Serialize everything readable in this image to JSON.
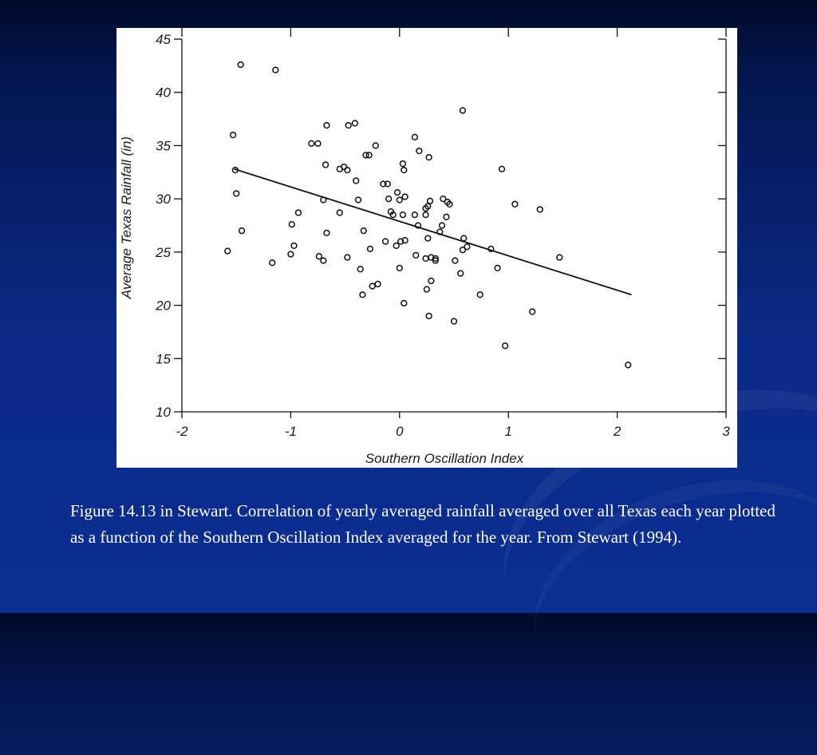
{
  "caption": "Figure 14.13 in Stewart.  Correlation of yearly averaged rainfall averaged over all Texas each year plotted as a function of the Southern Oscillation Index averaged for the year. From Stewart (1994).",
  "chart_data": {
    "type": "scatter",
    "xlabel": "Southern Oscillation Index",
    "ylabel": "Average Texas Rainfall (in)",
    "xlim": [
      -2,
      3
    ],
    "ylim": [
      10,
      45
    ],
    "xticks": [
      "-2",
      "-1",
      "0",
      "1",
      "2",
      "3"
    ],
    "yticks": [
      "10",
      "15",
      "20",
      "25",
      "30",
      "35",
      "40",
      "45"
    ],
    "grid": false,
    "points": [
      [
        -1.46,
        42.6
      ],
      [
        -1.14,
        42.1
      ],
      [
        -1.53,
        36.0
      ],
      [
        -1.51,
        32.7
      ],
      [
        -1.5,
        30.5
      ],
      [
        -1.45,
        27.0
      ],
      [
        -1.58,
        25.1
      ],
      [
        -1.17,
        24.0
      ],
      [
        -0.99,
        27.6
      ],
      [
        -0.93,
        28.7
      ],
      [
        -0.97,
        25.6
      ],
      [
        -1.0,
        24.8
      ],
      [
        -0.81,
        35.2
      ],
      [
        -0.75,
        35.2
      ],
      [
        -0.67,
        36.9
      ],
      [
        -0.68,
        33.2
      ],
      [
        -0.7,
        29.9
      ],
      [
        -0.67,
        26.8
      ],
      [
        -0.74,
        24.6
      ],
      [
        -0.7,
        24.2
      ],
      [
        -0.55,
        32.8
      ],
      [
        -0.51,
        33.0
      ],
      [
        -0.48,
        32.7
      ],
      [
        -0.47,
        36.9
      ],
      [
        -0.41,
        37.1
      ],
      [
        -0.4,
        31.7
      ],
      [
        -0.38,
        29.9
      ],
      [
        -0.55,
        28.7
      ],
      [
        -0.48,
        24.5
      ],
      [
        -0.31,
        34.1
      ],
      [
        -0.28,
        34.1
      ],
      [
        -0.22,
        35.0
      ],
      [
        -0.33,
        27.0
      ],
      [
        -0.27,
        25.3
      ],
      [
        -0.36,
        23.4
      ],
      [
        -0.34,
        21.0
      ],
      [
        -0.25,
        21.8
      ],
      [
        -0.2,
        22.0
      ],
      [
        -0.15,
        31.4
      ],
      [
        -0.11,
        31.4
      ],
      [
        -0.1,
        30.0
      ],
      [
        -0.08,
        28.8
      ],
      [
        -0.06,
        28.5
      ],
      [
        -0.13,
        26.0
      ],
      [
        -0.02,
        30.6
      ],
      [
        0.0,
        29.9
      ],
      [
        0.05,
        30.2
      ],
      [
        -0.03,
        25.6
      ],
      [
        0.01,
        26.0
      ],
      [
        0.05,
        26.1
      ],
      [
        0.03,
        28.5
      ],
      [
        0.0,
        23.5
      ],
      [
        0.03,
        33.3
      ],
      [
        0.04,
        32.7
      ],
      [
        0.14,
        35.8
      ],
      [
        0.18,
        34.5
      ],
      [
        0.27,
        33.9
      ],
      [
        0.14,
        28.5
      ],
      [
        0.17,
        27.5
      ],
      [
        0.15,
        24.7
      ],
      [
        0.24,
        29.1
      ],
      [
        0.26,
        29.3
      ],
      [
        0.28,
        29.8
      ],
      [
        0.24,
        28.5
      ],
      [
        0.26,
        26.3
      ],
      [
        0.24,
        24.4
      ],
      [
        0.29,
        24.5
      ],
      [
        0.33,
        24.4
      ],
      [
        0.33,
        24.2
      ],
      [
        0.29,
        22.3
      ],
      [
        0.25,
        21.5
      ],
      [
        0.04,
        20.2
      ],
      [
        0.27,
        19.0
      ],
      [
        0.4,
        30.0
      ],
      [
        0.44,
        29.7
      ],
      [
        0.46,
        29.5
      ],
      [
        0.43,
        28.3
      ],
      [
        0.39,
        27.5
      ],
      [
        0.37,
        26.9
      ],
      [
        0.58,
        38.3
      ],
      [
        0.59,
        26.3
      ],
      [
        0.62,
        25.5
      ],
      [
        0.58,
        25.2
      ],
      [
        0.51,
        24.2
      ],
      [
        0.56,
        23.0
      ],
      [
        0.5,
        18.5
      ],
      [
        0.74,
        21.0
      ],
      [
        0.84,
        25.3
      ],
      [
        0.9,
        23.5
      ],
      [
        0.94,
        32.8
      ],
      [
        1.06,
        29.5
      ],
      [
        0.97,
        16.2
      ],
      [
        1.22,
        19.4
      ],
      [
        1.29,
        29.0
      ],
      [
        1.47,
        24.5
      ],
      [
        2.1,
        14.4
      ]
    ],
    "trendline": [
      [
        -1.52,
        32.8
      ],
      [
        2.13,
        21.0
      ]
    ]
  }
}
